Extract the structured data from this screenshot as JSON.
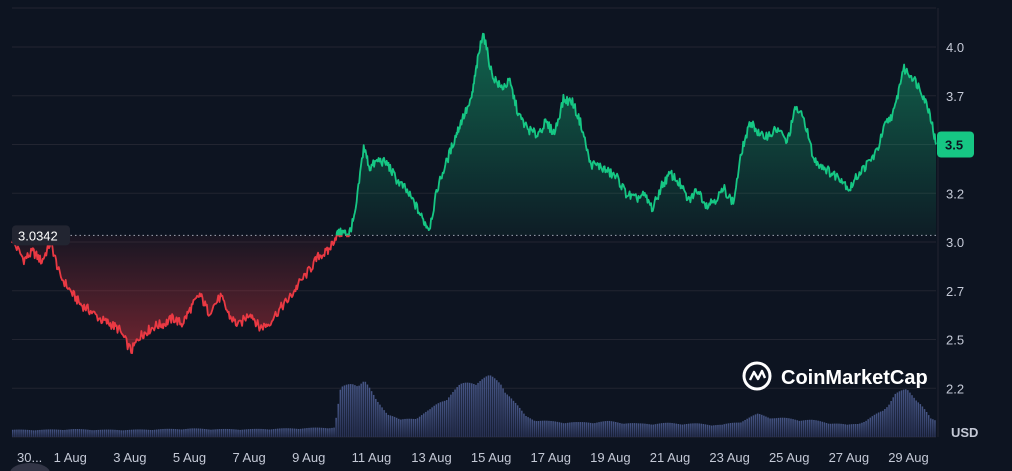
{
  "chart_data": {
    "type": "area",
    "unit": "USD",
    "watermark": "CoinMarketCap",
    "reference_value": 3.0342,
    "reference_label": "3.0342",
    "current_price_label": "3.5",
    "current_value": 3.5,
    "ylim": [
      2.0,
      4.2
    ],
    "y_ticks": [
      {
        "value": 4.0,
        "label": "4.0"
      },
      {
        "value": 3.75,
        "label": "3.7"
      },
      {
        "value": 3.5,
        "label": "3.5"
      },
      {
        "value": 3.25,
        "label": "3.2"
      },
      {
        "value": 3.0,
        "label": "3.0"
      },
      {
        "value": 2.75,
        "label": "2.7"
      },
      {
        "value": 2.5,
        "label": "2.5"
      },
      {
        "value": 2.25,
        "label": "2.2"
      }
    ],
    "xlim": [
      -1,
      30
    ],
    "x_ticks": [
      {
        "day": -1,
        "label": "30..."
      },
      {
        "day": 1,
        "label": "1 Aug"
      },
      {
        "day": 3,
        "label": "3 Aug"
      },
      {
        "day": 5,
        "label": "5 Aug"
      },
      {
        "day": 7,
        "label": "7 Aug"
      },
      {
        "day": 9,
        "label": "9 Aug"
      },
      {
        "day": 11,
        "label": "11 Aug"
      },
      {
        "day": 13,
        "label": "13 Aug"
      },
      {
        "day": 15,
        "label": "15 Aug"
      },
      {
        "day": 17,
        "label": "17 Aug"
      },
      {
        "day": 19,
        "label": "19 Aug"
      },
      {
        "day": 21,
        "label": "21 Aug"
      },
      {
        "day": 23,
        "label": "23 Aug"
      },
      {
        "day": 25,
        "label": "25 Aug"
      },
      {
        "day": 27,
        "label": "27 Aug"
      },
      {
        "day": 29,
        "label": "29 Aug"
      }
    ],
    "price_series": {
      "x": [
        -1.0,
        -0.6,
        -0.3,
        0.0,
        0.3,
        0.6,
        1.0,
        1.3,
        1.6,
        2.0,
        2.3,
        2.6,
        3.0,
        3.3,
        3.5,
        3.8,
        4.1,
        4.4,
        4.7,
        5.0,
        5.3,
        5.6,
        6.0,
        6.3,
        6.6,
        7.0,
        7.3,
        7.6,
        8.0,
        8.3,
        8.6,
        9.0,
        9.3,
        9.6,
        9.9,
        10.1,
        10.3,
        10.5,
        10.8,
        11.0,
        11.3,
        11.6,
        11.9,
        12.2,
        12.5,
        12.8,
        13.0,
        13.3,
        13.6,
        13.9,
        14.1,
        14.4,
        14.6,
        14.8,
        15.1,
        15.4,
        15.7,
        16.0,
        16.3,
        16.6,
        16.9,
        17.2,
        17.5,
        17.8,
        18.1,
        18.4,
        18.7,
        19.0,
        19.3,
        19.6,
        19.9,
        20.2,
        20.5,
        20.8,
        21.1,
        21.4,
        21.7,
        22.0,
        22.3,
        22.6,
        22.9,
        23.2,
        23.5,
        23.8,
        24.1,
        24.4,
        24.7,
        25.0,
        25.3,
        25.6,
        25.9,
        26.2,
        26.5,
        26.8,
        27.1,
        27.4,
        27.7,
        28.0,
        28.3,
        28.6,
        28.9,
        29.2,
        29.5,
        29.8,
        30.0
      ],
      "y": [
        3.01,
        2.91,
        2.95,
        2.9,
        3.0,
        2.83,
        2.74,
        2.68,
        2.65,
        2.6,
        2.58,
        2.55,
        2.44,
        2.52,
        2.54,
        2.57,
        2.58,
        2.61,
        2.58,
        2.66,
        2.73,
        2.64,
        2.72,
        2.62,
        2.57,
        2.64,
        2.56,
        2.58,
        2.66,
        2.71,
        2.78,
        2.86,
        2.93,
        2.95,
        3.04,
        3.05,
        3.04,
        3.13,
        3.49,
        3.38,
        3.42,
        3.4,
        3.32,
        3.27,
        3.2,
        3.11,
        3.07,
        3.29,
        3.42,
        3.55,
        3.63,
        3.72,
        3.91,
        4.08,
        3.86,
        3.79,
        3.82,
        3.65,
        3.58,
        3.55,
        3.61,
        3.56,
        3.73,
        3.72,
        3.6,
        3.4,
        3.39,
        3.36,
        3.33,
        3.25,
        3.22,
        3.24,
        3.17,
        3.29,
        3.35,
        3.3,
        3.21,
        3.27,
        3.19,
        3.22,
        3.27,
        3.2,
        3.48,
        3.62,
        3.54,
        3.55,
        3.58,
        3.51,
        3.69,
        3.62,
        3.42,
        3.39,
        3.35,
        3.33,
        3.27,
        3.35,
        3.4,
        3.46,
        3.6,
        3.67,
        3.89,
        3.85,
        3.78,
        3.66,
        3.5
      ]
    },
    "volume_series": {
      "x": [
        -1,
        0,
        1,
        2,
        3,
        4,
        5,
        6,
        7,
        8,
        9,
        9.8,
        10,
        10.4,
        10.8,
        11.2,
        11.6,
        12,
        12.5,
        13,
        13.5,
        14,
        14.5,
        15,
        15.4,
        15.8,
        16.2,
        16.6,
        17,
        18,
        19,
        20,
        21,
        22,
        22.8,
        23.4,
        24,
        24.6,
        25.2,
        25.8,
        26.4,
        27,
        27.6,
        28.2,
        28.6,
        29,
        29.4,
        29.8,
        30
      ],
      "y": [
        0.12,
        0.12,
        0.13,
        0.12,
        0.12,
        0.13,
        0.14,
        0.13,
        0.13,
        0.14,
        0.15,
        0.16,
        0.8,
        0.9,
        0.95,
        0.6,
        0.4,
        0.28,
        0.32,
        0.45,
        0.65,
        0.85,
        0.95,
        1.0,
        0.9,
        0.6,
        0.35,
        0.28,
        0.26,
        0.24,
        0.26,
        0.22,
        0.23,
        0.22,
        0.2,
        0.26,
        0.38,
        0.32,
        0.3,
        0.28,
        0.24,
        0.2,
        0.26,
        0.45,
        0.72,
        0.78,
        0.62,
        0.3,
        0.26
      ]
    }
  }
}
